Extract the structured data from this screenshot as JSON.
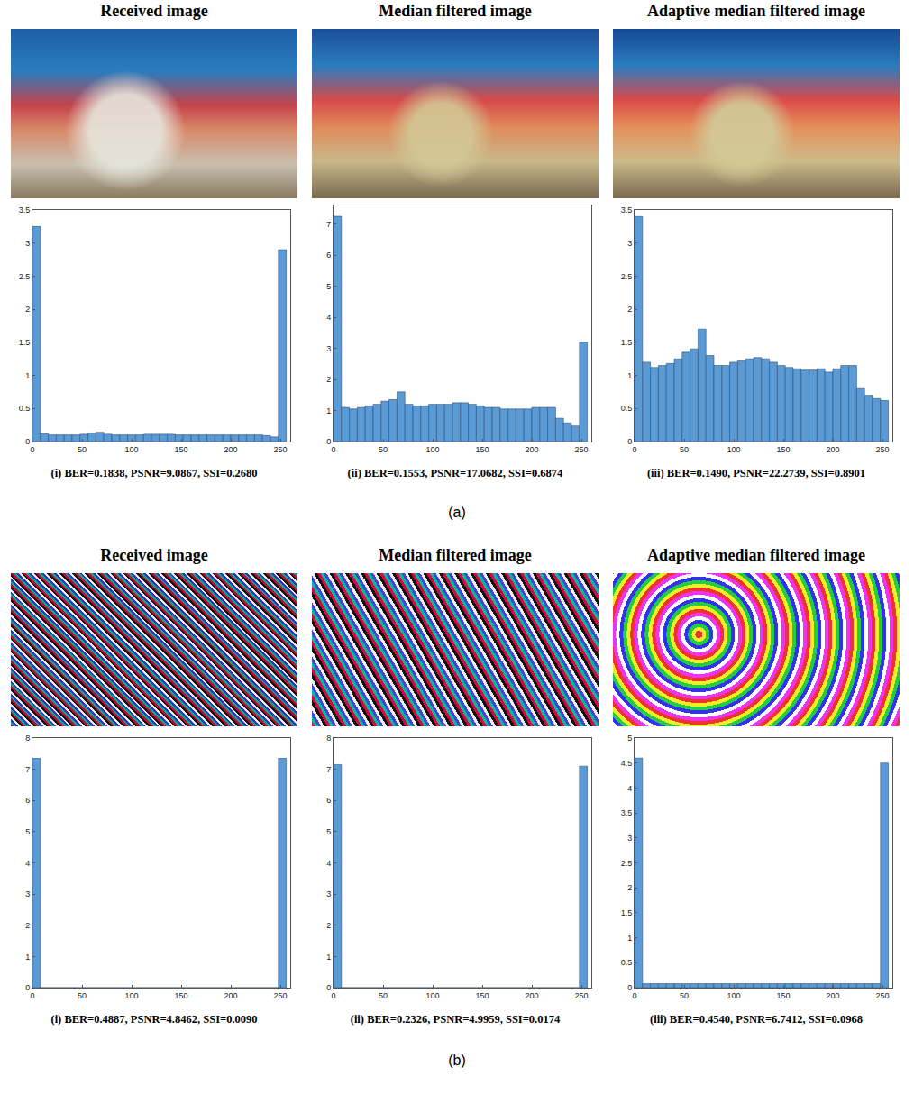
{
  "panel_labels": [
    "(a)",
    "(b)"
  ],
  "chart_data": [
    {
      "type": "histogram",
      "title": "Received image",
      "annotations": [
        "(i) BER=0.1838, PSNR=9.0867, SSI=0.2680"
      ],
      "bins": [
        0,
        8,
        16,
        24,
        32,
        40,
        48,
        56,
        64,
        72,
        80,
        88,
        96,
        104,
        112,
        120,
        128,
        136,
        144,
        152,
        160,
        168,
        176,
        184,
        192,
        200,
        208,
        216,
        224,
        232,
        240,
        248,
        256
      ],
      "values": [
        3.25,
        0.12,
        0.1,
        0.1,
        0.1,
        0.1,
        0.11,
        0.13,
        0.14,
        0.11,
        0.1,
        0.1,
        0.1,
        0.1,
        0.11,
        0.11,
        0.11,
        0.11,
        0.1,
        0.1,
        0.1,
        0.1,
        0.1,
        0.1,
        0.1,
        0.1,
        0.1,
        0.1,
        0.1,
        0.09,
        0.07,
        2.9
      ],
      "color": "#5b9bd5",
      "xlim": [
        0,
        260
      ],
      "xticks": [
        0,
        50,
        100,
        150,
        200,
        250
      ],
      "ylim": [
        0,
        3.5
      ],
      "yticks": [
        0,
        0.5,
        1,
        1.5,
        2,
        2.5,
        3,
        3.5
      ],
      "grid": false
    },
    {
      "type": "histogram",
      "title": "Median filtered image",
      "annotations": [
        "(ii) BER=0.1553, PSNR=17.0682, SSI=0.6874"
      ],
      "bins": [
        0,
        8,
        16,
        24,
        32,
        40,
        48,
        56,
        64,
        72,
        80,
        88,
        96,
        104,
        112,
        120,
        128,
        136,
        144,
        152,
        160,
        168,
        176,
        184,
        192,
        200,
        208,
        216,
        224,
        232,
        240,
        248,
        256
      ],
      "values": [
        7.25,
        1.1,
        1.05,
        1.1,
        1.15,
        1.2,
        1.3,
        1.35,
        1.6,
        1.2,
        1.15,
        1.15,
        1.2,
        1.2,
        1.2,
        1.25,
        1.25,
        1.2,
        1.15,
        1.1,
        1.1,
        1.05,
        1.05,
        1.05,
        1.05,
        1.1,
        1.1,
        1.1,
        0.75,
        0.6,
        0.5,
        3.2
      ],
      "color": "#5b9bd5",
      "xlim": [
        0,
        260
      ],
      "xticks": [
        0,
        50,
        100,
        150,
        200,
        250
      ],
      "ylim": [
        0,
        7.6
      ],
      "yticks": [
        0,
        1,
        2,
        3,
        4,
        5,
        6,
        7
      ],
      "grid": false
    },
    {
      "type": "histogram",
      "title": "Adaptive median filtered image",
      "annotations": [
        "(iii) BER=0.1490, PSNR=22.2739, SSI=0.8901"
      ],
      "bins": [
        0,
        8,
        16,
        24,
        32,
        40,
        48,
        56,
        64,
        72,
        80,
        88,
        96,
        104,
        112,
        120,
        128,
        136,
        144,
        152,
        160,
        168,
        176,
        184,
        192,
        200,
        208,
        216,
        224,
        232,
        240,
        248,
        256
      ],
      "values": [
        3.4,
        1.2,
        1.12,
        1.15,
        1.18,
        1.25,
        1.35,
        1.4,
        1.7,
        1.3,
        1.15,
        1.15,
        1.2,
        1.22,
        1.25,
        1.27,
        1.25,
        1.2,
        1.15,
        1.12,
        1.1,
        1.08,
        1.08,
        1.1,
        1.05,
        1.1,
        1.15,
        1.15,
        0.8,
        0.7,
        0.65,
        0.62
      ],
      "color": "#5b9bd5",
      "xlim": [
        0,
        260
      ],
      "xticks": [
        0,
        50,
        100,
        150,
        200,
        250
      ],
      "ylim": [
        0,
        3.5
      ],
      "yticks": [
        0,
        0.5,
        1,
        1.5,
        2,
        2.5,
        3,
        3.5
      ],
      "grid": false
    },
    {
      "type": "histogram",
      "title": "Received image",
      "annotations": [
        "(i) BER=0.4887, PSNR=4.8462, SSI=0.0090"
      ],
      "bins": [
        0,
        8,
        16,
        24,
        32,
        40,
        48,
        56,
        64,
        72,
        80,
        88,
        96,
        104,
        112,
        120,
        128,
        136,
        144,
        152,
        160,
        168,
        176,
        184,
        192,
        200,
        208,
        216,
        224,
        232,
        240,
        248,
        256
      ],
      "values": [
        7.35,
        0,
        0,
        0,
        0,
        0,
        0,
        0,
        0,
        0,
        0,
        0,
        0,
        0,
        0,
        0,
        0,
        0,
        0,
        0,
        0,
        0,
        0,
        0,
        0,
        0,
        0,
        0,
        0,
        0,
        0,
        7.35
      ],
      "color": "#5b9bd5",
      "xlim": [
        0,
        260
      ],
      "xticks": [
        0,
        50,
        100,
        150,
        200,
        250
      ],
      "ylim": [
        0,
        8
      ],
      "yticks": [
        0,
        1,
        2,
        3,
        4,
        5,
        6,
        7,
        8
      ],
      "grid": false
    },
    {
      "type": "histogram",
      "title": "Median filtered image",
      "annotations": [
        "(ii) BER=0.2326, PSNR=4.9959, SSI=0.0174"
      ],
      "bins": [
        0,
        8,
        16,
        24,
        32,
        40,
        48,
        56,
        64,
        72,
        80,
        88,
        96,
        104,
        112,
        120,
        128,
        136,
        144,
        152,
        160,
        168,
        176,
        184,
        192,
        200,
        208,
        216,
        224,
        232,
        240,
        248,
        256
      ],
      "values": [
        7.15,
        0,
        0,
        0,
        0,
        0,
        0,
        0,
        0,
        0,
        0,
        0,
        0,
        0,
        0,
        0,
        0,
        0,
        0,
        0,
        0,
        0,
        0,
        0,
        0,
        0,
        0,
        0,
        0,
        0,
        0,
        7.1
      ],
      "color": "#5b9bd5",
      "xlim": [
        0,
        260
      ],
      "xticks": [
        0,
        50,
        100,
        150,
        200,
        250
      ],
      "ylim": [
        0,
        8
      ],
      "yticks": [
        0,
        1,
        2,
        3,
        4,
        5,
        6,
        7,
        8
      ],
      "grid": false
    },
    {
      "type": "histogram",
      "title": "Adaptive median filtered image",
      "annotations": [
        "(iii) BER=0.4540, PSNR=6.7412, SSI=0.0968"
      ],
      "bins": [
        0,
        8,
        16,
        24,
        32,
        40,
        48,
        56,
        64,
        72,
        80,
        88,
        96,
        104,
        112,
        120,
        128,
        136,
        144,
        152,
        160,
        168,
        176,
        184,
        192,
        200,
        208,
        216,
        224,
        232,
        240,
        248,
        256
      ],
      "values": [
        4.6,
        0.08,
        0.08,
        0.08,
        0.08,
        0.08,
        0.08,
        0.08,
        0.08,
        0.08,
        0.08,
        0.08,
        0.08,
        0.08,
        0.08,
        0.08,
        0.08,
        0.08,
        0.08,
        0.08,
        0.08,
        0.08,
        0.08,
        0.08,
        0.08,
        0.08,
        0.08,
        0.08,
        0.08,
        0.08,
        0.08,
        4.5
      ],
      "color": "#5b9bd5",
      "xlim": [
        0,
        260
      ],
      "xticks": [
        0,
        50,
        100,
        150,
        200,
        250
      ],
      "ylim": [
        0,
        5
      ],
      "yticks": [
        0,
        0.5,
        1,
        1.5,
        2,
        2.5,
        3,
        3.5,
        4,
        4.5,
        5
      ],
      "grid": false
    }
  ]
}
